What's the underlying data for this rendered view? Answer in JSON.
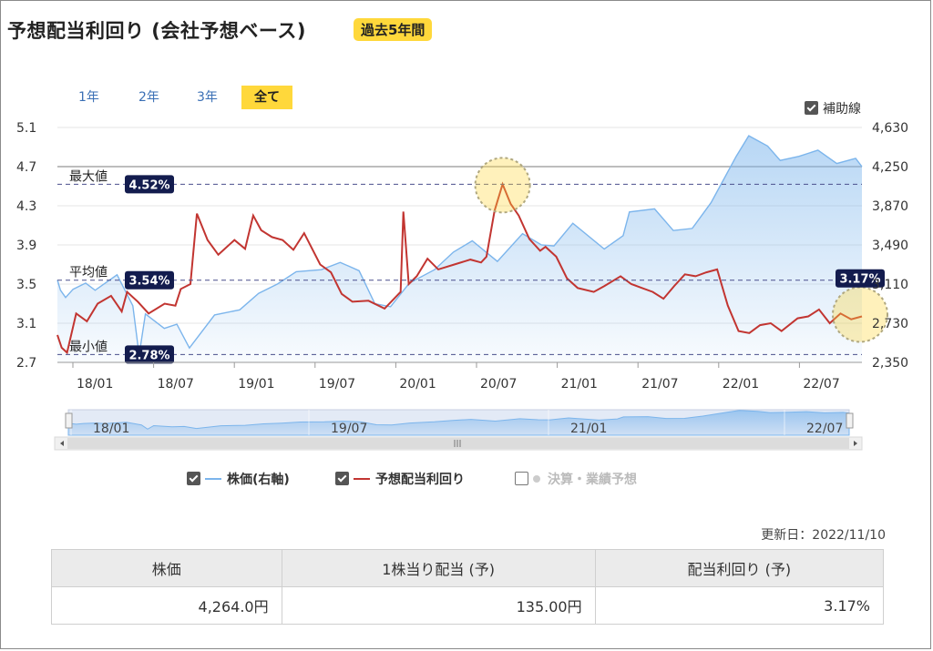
{
  "header": {
    "title": "予想配当利回り (会社予想ベース)",
    "badge": "過去5年間"
  },
  "periods": [
    {
      "label": "1年"
    },
    {
      "label": "2年"
    },
    {
      "label": "3年"
    },
    {
      "label": "全て",
      "active": true
    }
  ],
  "helper_lines": {
    "label": "補助線",
    "checked": true
  },
  "chart_data": {
    "type": "line",
    "title": "",
    "x_ticks": [
      "18/01",
      "18/07",
      "19/01",
      "19/07",
      "20/01",
      "20/07",
      "21/01",
      "21/07",
      "22/01",
      "22/07"
    ],
    "x_range": [
      "2017/11",
      "2022/11"
    ],
    "y_left": {
      "ticks": [
        "5.1",
        "4.7",
        "4.3",
        "3.9",
        "3.5",
        "3.1",
        "2.7"
      ],
      "range": [
        2.7,
        5.1
      ]
    },
    "y_right": {
      "ticks": [
        "4,630",
        "4,250",
        "3,870",
        "3,490",
        "3,110",
        "2,730",
        "2,350"
      ],
      "range": [
        2350,
        4630
      ]
    },
    "reference_lines": [
      {
        "name": "最大値",
        "label": "4.52%",
        "value": 4.52
      },
      {
        "name": "平均値",
        "label": "3.54%",
        "value": 3.54
      },
      {
        "name": "最小値",
        "label": "2.78%",
        "value": 2.78
      }
    ],
    "current_label": "3.17%",
    "series": [
      {
        "name": "株価(右軸)",
        "axis": "right",
        "color": "#7cb5ec",
        "points": [
          [
            0,
            3150
          ],
          [
            0.05,
            3050
          ],
          [
            0.13,
            2980
          ],
          [
            0.25,
            3060
          ],
          [
            0.45,
            3120
          ],
          [
            0.6,
            3050
          ],
          [
            0.95,
            3200
          ],
          [
            1.2,
            2900
          ],
          [
            1.3,
            2420
          ],
          [
            1.4,
            2820
          ],
          [
            1.7,
            2680
          ],
          [
            1.9,
            2720
          ],
          [
            2.1,
            2490
          ],
          [
            2.5,
            2810
          ],
          [
            2.9,
            2860
          ],
          [
            3.2,
            3020
          ],
          [
            3.5,
            3110
          ],
          [
            3.8,
            3230
          ],
          [
            4.2,
            3250
          ],
          [
            4.5,
            3320
          ],
          [
            4.8,
            3240
          ],
          [
            5.05,
            2920
          ],
          [
            5.3,
            2890
          ],
          [
            5.6,
            3120
          ],
          [
            6.0,
            3250
          ],
          [
            6.3,
            3420
          ],
          [
            6.6,
            3530
          ],
          [
            7.0,
            3330
          ],
          [
            7.4,
            3600
          ],
          [
            7.7,
            3490
          ],
          [
            7.9,
            3480
          ],
          [
            8.2,
            3700
          ],
          [
            8.7,
            3450
          ],
          [
            9.0,
            3580
          ],
          [
            9.1,
            3810
          ],
          [
            9.5,
            3840
          ],
          [
            9.8,
            3630
          ],
          [
            10.1,
            3650
          ],
          [
            10.4,
            3900
          ],
          [
            10.8,
            4350
          ],
          [
            11.0,
            4550
          ],
          [
            11.3,
            4450
          ],
          [
            11.5,
            4310
          ],
          [
            11.8,
            4350
          ],
          [
            12.1,
            4410
          ],
          [
            12.4,
            4280
          ],
          [
            12.7,
            4330
          ],
          [
            12.8,
            4250
          ]
        ]
      },
      {
        "name": "予想配当利回り",
        "axis": "left",
        "color": "#c23531",
        "points": [
          [
            0,
            2.98
          ],
          [
            0.08,
            2.85
          ],
          [
            0.18,
            2.8
          ],
          [
            0.35,
            3.2
          ],
          [
            0.55,
            3.12
          ],
          [
            0.75,
            3.3
          ],
          [
            1.0,
            3.38
          ],
          [
            1.2,
            3.22
          ],
          [
            1.3,
            3.42
          ],
          [
            1.5,
            3.32
          ],
          [
            1.7,
            3.2
          ],
          [
            2.0,
            3.3
          ],
          [
            2.2,
            3.28
          ],
          [
            2.3,
            3.45
          ],
          [
            2.48,
            3.5
          ],
          [
            2.6,
            4.22
          ],
          [
            2.8,
            3.95
          ],
          [
            3.0,
            3.8
          ],
          [
            3.3,
            3.95
          ],
          [
            3.5,
            3.86
          ],
          [
            3.65,
            4.2
          ],
          [
            3.8,
            4.05
          ],
          [
            4.0,
            3.98
          ],
          [
            4.2,
            3.95
          ],
          [
            4.4,
            3.85
          ],
          [
            4.6,
            4.02
          ],
          [
            4.9,
            3.7
          ],
          [
            5.1,
            3.62
          ],
          [
            5.3,
            3.4
          ],
          [
            5.5,
            3.32
          ],
          [
            5.8,
            3.33
          ],
          [
            6.1,
            3.25
          ],
          [
            6.4,
            3.42
          ],
          [
            6.45,
            4.24
          ],
          [
            6.55,
            3.5
          ],
          [
            6.7,
            3.58
          ],
          [
            6.9,
            3.76
          ],
          [
            7.1,
            3.65
          ],
          [
            7.4,
            3.7
          ],
          [
            7.7,
            3.75
          ],
          [
            7.9,
            3.72
          ],
          [
            8.0,
            3.78
          ],
          [
            8.15,
            4.25
          ],
          [
            8.3,
            4.52
          ],
          [
            8.45,
            4.32
          ],
          [
            8.6,
            4.2
          ],
          [
            8.8,
            3.96
          ],
          [
            9.0,
            3.84
          ],
          [
            9.1,
            3.88
          ],
          [
            9.3,
            3.78
          ],
          [
            9.5,
            3.56
          ],
          [
            9.7,
            3.46
          ],
          [
            10.0,
            3.42
          ],
          [
            10.2,
            3.48
          ],
          [
            10.5,
            3.58
          ],
          [
            10.7,
            3.5
          ],
          [
            10.9,
            3.46
          ],
          [
            11.1,
            3.42
          ],
          [
            11.3,
            3.35
          ],
          [
            11.5,
            3.48
          ],
          [
            11.7,
            3.6
          ],
          [
            11.9,
            3.58
          ],
          [
            12.1,
            3.62
          ],
          [
            12.3,
            3.65
          ],
          [
            12.5,
            3.28
          ],
          [
            12.7,
            3.02
          ],
          [
            12.9,
            3.0
          ],
          [
            13.1,
            3.08
          ],
          [
            13.3,
            3.1
          ],
          [
            13.5,
            3.02
          ],
          [
            13.8,
            3.15
          ],
          [
            14.0,
            3.17
          ],
          [
            14.2,
            3.24
          ],
          [
            14.4,
            3.1
          ],
          [
            14.6,
            3.2
          ],
          [
            14.8,
            3.14
          ],
          [
            15.0,
            3.17
          ]
        ]
      }
    ],
    "navigator_ticks": [
      "18/01",
      "19/07",
      "21/01",
      "22/07"
    ]
  },
  "legend": [
    {
      "label": "株価(右軸)",
      "checked": true,
      "color": "#7cb5ec"
    },
    {
      "label": "予想配当利回り",
      "checked": true,
      "color": "#c23531"
    },
    {
      "label": "決算・業績予想",
      "checked": false,
      "color": "#cccccc"
    }
  ],
  "updated": "更新日：2022/11/10",
  "stats_table": {
    "headers": [
      "株価",
      "1株当り配当 (予)",
      "配当利回り (予)"
    ],
    "values": [
      "4,264.0円",
      "135.00円",
      "3.17%"
    ]
  }
}
